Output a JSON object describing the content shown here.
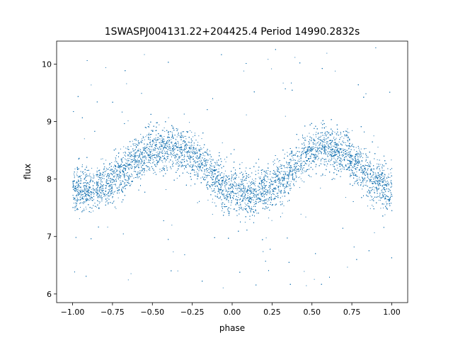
{
  "chart_data": {
    "type": "scatter",
    "title": "1SWASPJ004131.22+204425.4 Period 14990.2832s",
    "xlabel": "phase",
    "ylabel": "flux",
    "xlim": [
      -1.1,
      1.1
    ],
    "ylim": [
      5.85,
      10.4
    ],
    "grid": false,
    "legend": "none",
    "x_ticks": [
      -1.0,
      -0.75,
      -0.5,
      -0.25,
      0.0,
      0.25,
      0.5,
      0.75,
      1.0
    ],
    "x_tick_labels": [
      "−1.00",
      "−0.75",
      "−0.50",
      "−0.25",
      "0.00",
      "0.25",
      "0.50",
      "0.75",
      "1.00"
    ],
    "y_ticks": [
      6,
      7,
      8,
      9,
      10
    ],
    "y_tick_labels": [
      "6",
      "7",
      "8",
      "9",
      "10"
    ],
    "series": [
      {
        "color": "#1f77b4",
        "x_range": [
          -1.0,
          1.0
        ],
        "trend": {
          "phase": [
            -1.0,
            -0.9,
            -0.8,
            -0.7,
            -0.6,
            -0.5,
            -0.4,
            -0.3,
            -0.2,
            -0.1,
            0.0,
            0.1,
            0.2,
            0.3,
            0.4,
            0.5,
            0.6,
            0.7,
            0.8,
            0.9,
            1.0
          ],
          "flux": [
            7.8,
            7.82,
            7.9,
            8.1,
            8.35,
            8.5,
            8.55,
            8.5,
            8.3,
            8.0,
            7.75,
            7.72,
            7.8,
            8.0,
            8.25,
            8.5,
            8.55,
            8.45,
            8.2,
            7.95,
            7.8
          ]
        },
        "band_halfwidth": 0.35,
        "outlier_range": [
          6.1,
          10.3
        ]
      }
    ]
  }
}
